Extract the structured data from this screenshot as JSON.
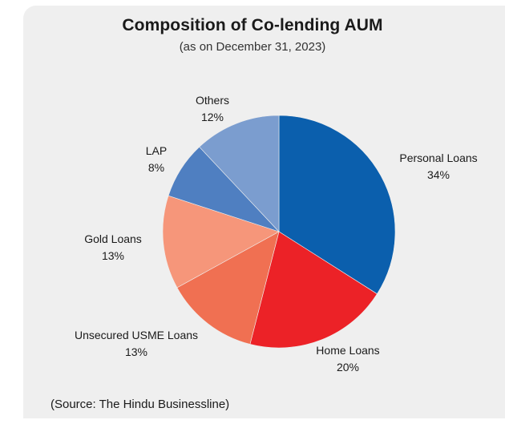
{
  "chart_data": {
    "type": "pie",
    "title": "Composition of Co-lending AUM",
    "subtitle": "(as on December 31, 2023)",
    "slices": [
      {
        "label": "Personal Loans",
        "value": 34,
        "value_label": "34%",
        "color": "#0b5fad"
      },
      {
        "label": "Home Loans",
        "value": 20,
        "value_label": "20%",
        "color": "#ec2227"
      },
      {
        "label": "Unsecured USME Loans",
        "value": 13,
        "value_label": "13%",
        "color": "#f07052"
      },
      {
        "label": "Gold Loans",
        "value": 13,
        "value_label": "13%",
        "color": "#f6967a"
      },
      {
        "label": "LAP",
        "value": 8,
        "value_label": "8%",
        "color": "#4f7fc1"
      },
      {
        "label": "Others",
        "value": 12,
        "value_label": "12%",
        "color": "#7b9dcf"
      }
    ],
    "start": "12 o'clock",
    "direction": "clockwise"
  },
  "source": "(Source: The Hindu Businessline)"
}
